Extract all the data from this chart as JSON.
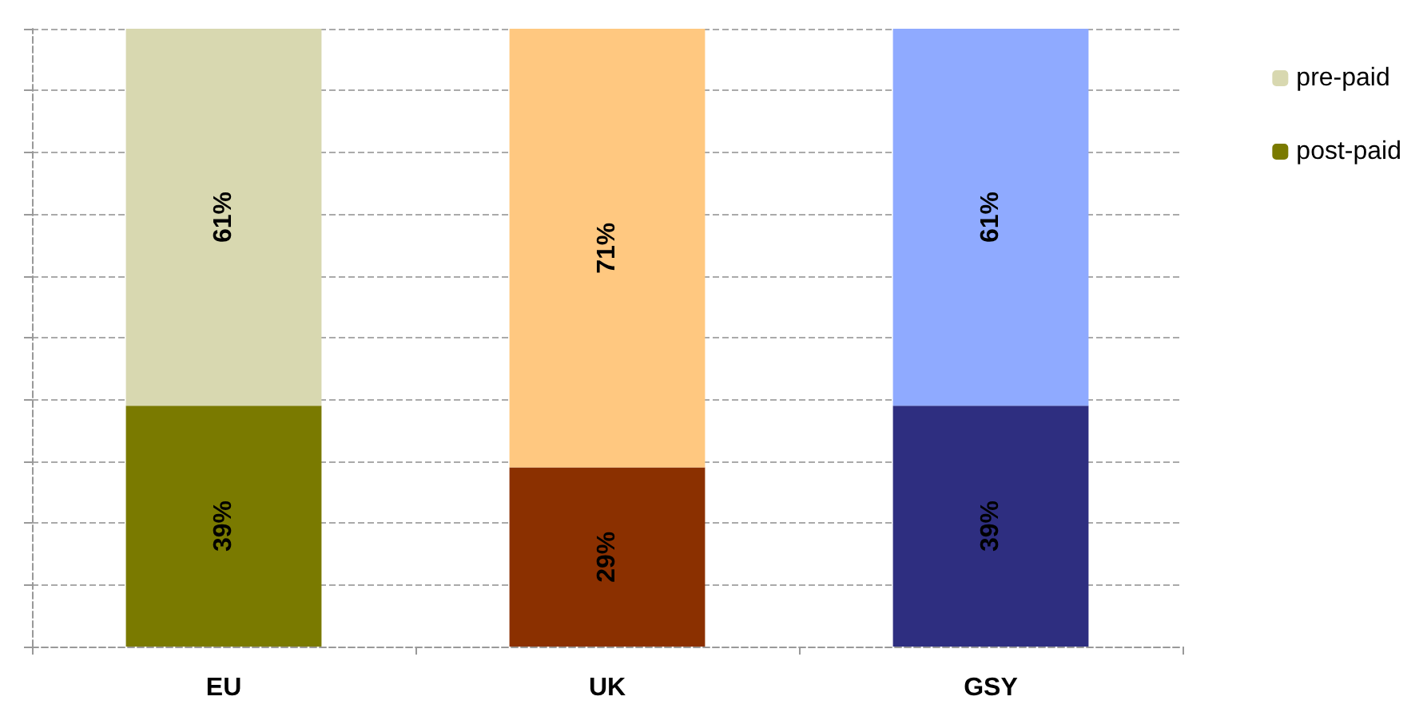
{
  "chart_data": {
    "type": "bar",
    "stacked": true,
    "categories": [
      "EU",
      "UK",
      "GSY"
    ],
    "series": [
      {
        "name": "post-paid",
        "color": "#7a7a00",
        "colors": [
          "#7a7a00",
          "#8b3000",
          "#2e2e80"
        ],
        "values": [
          39,
          29,
          39
        ],
        "value_labels": [
          "39%",
          "29%",
          "39%"
        ]
      },
      {
        "name": "pre-paid",
        "color": "#d8d8b0",
        "colors": [
          "#d8d8b0",
          "#ffc880",
          "#8faaff"
        ],
        "values": [
          61,
          71,
          61
        ],
        "value_labels": [
          "61%",
          "71%",
          "61%"
        ]
      }
    ],
    "ylim": [
      0,
      100
    ],
    "yticks": [
      {
        "value": 0,
        "label": null
      },
      {
        "value": 10,
        "label": null
      },
      {
        "value": 20,
        "label": null
      },
      {
        "value": 30,
        "label": null
      },
      {
        "value": 40,
        "label": null
      },
      {
        "value": 50,
        "label": null
      },
      {
        "value": 60,
        "label": null
      },
      {
        "value": 70,
        "label": null
      },
      {
        "value": 80,
        "label": null
      },
      {
        "value": 90,
        "label": null
      },
      {
        "value": 100,
        "label": null
      }
    ],
    "tick_labels": "x",
    "grid": "y",
    "legend": "top right"
  }
}
